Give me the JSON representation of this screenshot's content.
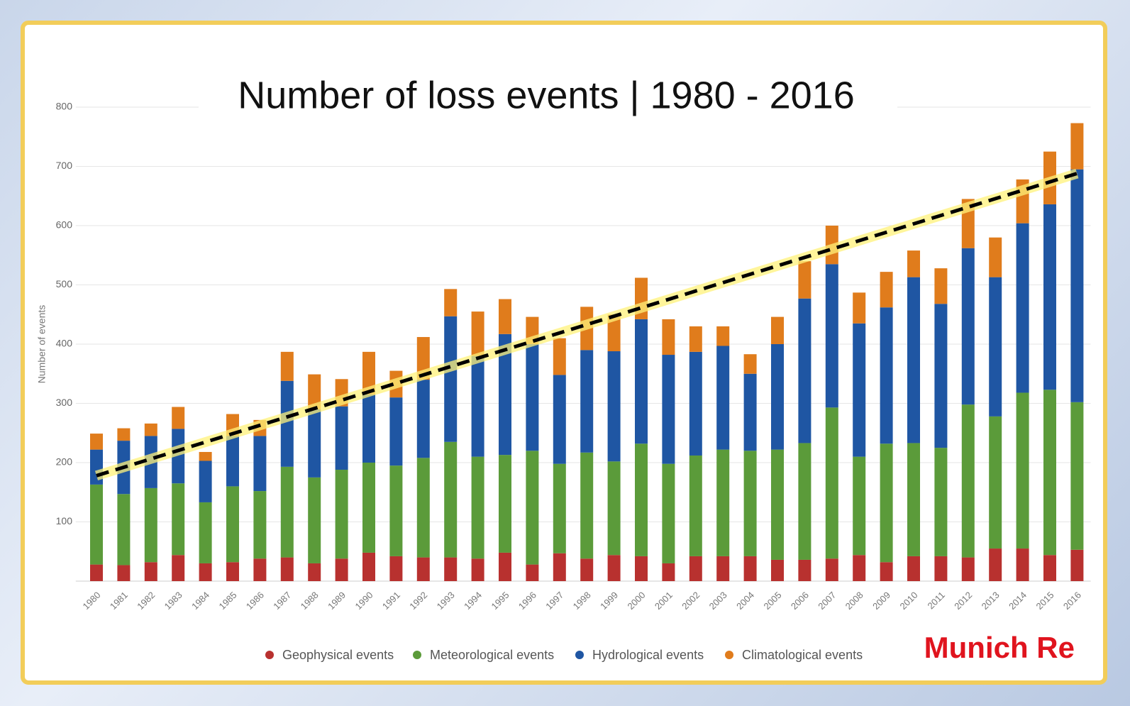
{
  "chart_data": {
    "type": "bar",
    "stacked": true,
    "title": "Number of loss events | 1980 - 2016",
    "y_label": "Number of events",
    "brand": "Munich Re",
    "categories": [
      "1980",
      "1981",
      "1982",
      "1983",
      "1984",
      "1985",
      "1986",
      "1987",
      "1988",
      "1989",
      "1990",
      "1991",
      "1992",
      "1993",
      "1994",
      "1995",
      "1996",
      "1997",
      "1998",
      "1999",
      "2000",
      "2001",
      "2002",
      "2003",
      "2004",
      "2005",
      "2006",
      "2007",
      "2008",
      "2009",
      "2010",
      "2011",
      "2012",
      "2013",
      "2014",
      "2015",
      "2016"
    ],
    "series": [
      {
        "name": "Geophysical events",
        "color": "#b8312f",
        "values": [
          28,
          27,
          32,
          44,
          30,
          32,
          38,
          40,
          30,
          38,
          48,
          42,
          40,
          40,
          38,
          48,
          28,
          47,
          38,
          44,
          42,
          30,
          42,
          42,
          42,
          36,
          36,
          38,
          44,
          32,
          42,
          42,
          40,
          55,
          55,
          44,
          53
        ]
      },
      {
        "name": "Meteorological events",
        "color": "#5b9b3a",
        "values": [
          135,
          120,
          125,
          121,
          103,
          128,
          114,
          153,
          145,
          150,
          152,
          153,
          168,
          195,
          172,
          165,
          192,
          151,
          179,
          158,
          190,
          168,
          170,
          180,
          178,
          186,
          197,
          255,
          166,
          200,
          191,
          183,
          258,
          223,
          263,
          279,
          249
        ]
      },
      {
        "name": "Hydrological events",
        "color": "#1f56a3",
        "values": [
          59,
          90,
          88,
          92,
          70,
          85,
          93,
          145,
          115,
          107,
          115,
          115,
          132,
          212,
          170,
          204,
          180,
          150,
          173,
          186,
          210,
          184,
          175,
          175,
          130,
          178,
          244,
          242,
          225,
          230,
          280,
          243,
          264,
          235,
          286,
          313,
          393
        ]
      },
      {
        "name": "Climatological events",
        "color": "#e07c1c",
        "values": [
          27,
          21,
          21,
          37,
          15,
          37,
          27,
          49,
          59,
          46,
          72,
          45,
          72,
          46,
          75,
          59,
          46,
          62,
          73,
          62,
          70,
          60,
          43,
          33,
          33,
          46,
          63,
          65,
          52,
          60,
          45,
          60,
          83,
          67,
          74,
          89,
          78
        ]
      }
    ],
    "trendline": [
      178,
      688
    ],
    "ylim": [
      0,
      800
    ],
    "yticks": [
      100,
      200,
      300,
      400,
      500,
      600,
      700,
      800
    ],
    "grid": true
  }
}
